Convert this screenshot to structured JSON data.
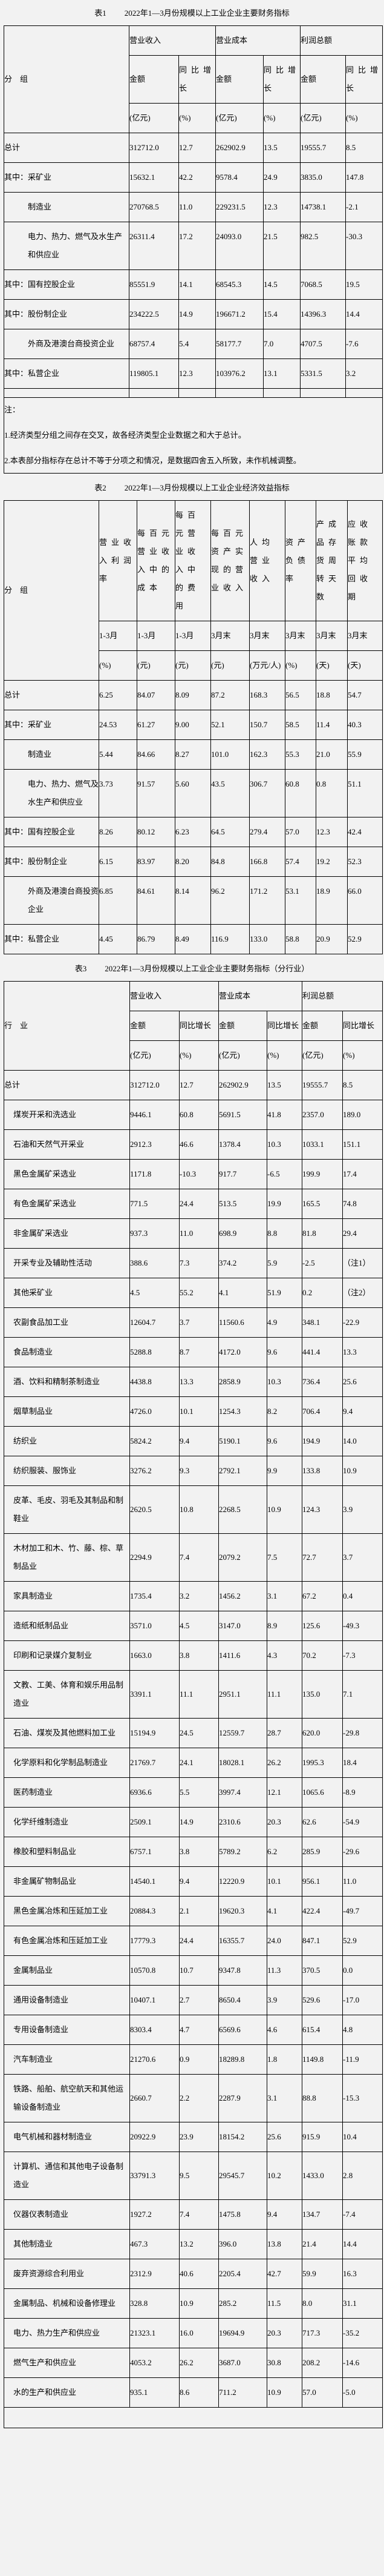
{
  "table1": {
    "number": "表1",
    "title": "2022年1—3月份规模以上工业企业主要财务指标",
    "row_header": "分　组",
    "groups": [
      "营业收入",
      "营业成本",
      "利润总额"
    ],
    "subheaders": [
      "金额",
      "同比增长"
    ],
    "units": [
      "(亿元)",
      "(%)"
    ],
    "rows": [
      {
        "label": "总计",
        "level": 0,
        "values": [
          "312712.0",
          "12.7",
          "262902.9",
          "13.5",
          "19555.7",
          "8.5"
        ]
      },
      {
        "label": "其中：采矿业",
        "level": 0,
        "values": [
          "15632.1",
          "42.2",
          "9578.4",
          "24.9",
          "3835.0",
          "147.8"
        ]
      },
      {
        "label": "制造业",
        "level": 1,
        "values": [
          "270768.5",
          "11.0",
          "229231.5",
          "12.3",
          "14738.1",
          "-2.1"
        ]
      },
      {
        "label": "电力、热力、燃气及水生产和供应业",
        "level": 1,
        "values": [
          "26311.4",
          "17.2",
          "24093.0",
          "21.5",
          "982.5",
          "-30.3"
        ]
      },
      {
        "label": "其中：国有控股企业",
        "level": 0,
        "values": [
          "85551.9",
          "14.1",
          "68545.3",
          "14.5",
          "7068.5",
          "19.5"
        ]
      },
      {
        "label": "其中：股份制企业",
        "level": 0,
        "values": [
          "234222.5",
          "14.9",
          "196671.2",
          "15.4",
          "14396.3",
          "14.4"
        ]
      },
      {
        "label": "外商及港澳台商投资企业",
        "level": 1,
        "values": [
          "68757.4",
          "5.4",
          "58177.7",
          "7.0",
          "4707.5",
          "-7.6"
        ]
      },
      {
        "label": "其中：私营企业",
        "level": 0,
        "values": [
          "119805.1",
          "12.3",
          "103976.2",
          "13.1",
          "5331.5",
          "3.2"
        ]
      }
    ],
    "notes": [
      "注：",
      "1.经济类型分组之间存在交叉，故各经济类型企业数据之和大于总计。",
      "2.本表部分指标存在总计不等于分项之和情况，是数据四舍五入所致，未作机械调整。"
    ]
  },
  "table2": {
    "number": "表2",
    "title": "2022年1—3月份规模以上工业企业经济效益指标",
    "row_header": "分　组",
    "columns": [
      {
        "name": "营业收入利润率",
        "period": "1-3月",
        "unit": "(%)"
      },
      {
        "name": "每百元营业收入中的成本",
        "period": "1-3月",
        "unit": "(元)"
      },
      {
        "name": "每百元营业收入中的费用",
        "period": "1-3月",
        "unit": "(元)"
      },
      {
        "name": "每百元资产实现的营业收入",
        "period": "3月末",
        "unit": "(元)"
      },
      {
        "name": "人均营业收入",
        "period": "3月末",
        "unit": "(万元/人)"
      },
      {
        "name": "资产负债率",
        "period": "3月末",
        "unit": "(%)"
      },
      {
        "name": "产成品存货周转天数",
        "period": "3月末",
        "unit": "(天)"
      },
      {
        "name": "应收账款平均回收期",
        "period": "3月末",
        "unit": "(天)"
      }
    ],
    "rows": [
      {
        "label": "总计",
        "level": 0,
        "values": [
          "6.25",
          "84.07",
          "8.09",
          "87.2",
          "168.3",
          "56.5",
          "18.8",
          "54.7"
        ]
      },
      {
        "label": "其中：采矿业",
        "level": 0,
        "values": [
          "24.53",
          "61.27",
          "9.00",
          "52.1",
          "150.7",
          "58.5",
          "11.4",
          "40.3"
        ]
      },
      {
        "label": "制造业",
        "level": 1,
        "values": [
          "5.44",
          "84.66",
          "8.27",
          "101.0",
          "162.3",
          "55.3",
          "21.0",
          "55.9"
        ]
      },
      {
        "label": "电力、热力、燃气及水生产和供应业",
        "level": 1,
        "values": [
          "3.73",
          "91.57",
          "5.60",
          "43.5",
          "306.7",
          "60.8",
          "0.8",
          "51.1"
        ]
      },
      {
        "label": "其中：国有控股企业",
        "level": 0,
        "values": [
          "8.26",
          "80.12",
          "6.23",
          "64.5",
          "279.4",
          "57.0",
          "12.3",
          "42.4"
        ]
      },
      {
        "label": "其中：股份制企业",
        "level": 0,
        "values": [
          "6.15",
          "83.97",
          "8.20",
          "84.8",
          "166.8",
          "57.4",
          "19.2",
          "52.3"
        ]
      },
      {
        "label": "外商及港澳台商投资企业",
        "level": 1,
        "values": [
          "6.85",
          "84.61",
          "8.14",
          "96.2",
          "171.2",
          "53.1",
          "18.9",
          "66.0"
        ]
      },
      {
        "label": "其中：私营企业",
        "level": 0,
        "values": [
          "4.45",
          "86.79",
          "8.49",
          "116.9",
          "133.0",
          "58.8",
          "20.9",
          "52.9"
        ]
      }
    ]
  },
  "table3": {
    "number": "表3",
    "title": "2022年1—3月份规模以上工业企业主要财务指标（分行业）",
    "row_header": "行　业",
    "groups": [
      "营业收入",
      "营业成本",
      "利润总额"
    ],
    "subheaders": [
      "金额",
      "同比增长"
    ],
    "units": [
      "(亿元)",
      "(%)"
    ],
    "rows": [
      {
        "label": "总计",
        "level": 0,
        "values": [
          "312712.0",
          "12.7",
          "262902.9",
          "13.5",
          "19555.7",
          "8.5"
        ]
      },
      {
        "label": "煤炭开采和洗选业",
        "level": 1,
        "values": [
          "9446.1",
          "60.8",
          "5691.5",
          "41.8",
          "2357.0",
          "189.0"
        ]
      },
      {
        "label": "石油和天然气开采业",
        "level": 1,
        "values": [
          "2912.3",
          "46.6",
          "1378.4",
          "10.3",
          "1033.1",
          "151.1"
        ]
      },
      {
        "label": "黑色金属矿采选业",
        "level": 1,
        "values": [
          "1171.8",
          "-10.3",
          "917.7",
          "-6.5",
          "199.9",
          "17.4"
        ]
      },
      {
        "label": "有色金属矿采选业",
        "level": 1,
        "values": [
          "771.5",
          "24.4",
          "513.5",
          "19.9",
          "165.5",
          "74.8"
        ]
      },
      {
        "label": "非金属矿采选业",
        "level": 1,
        "values": [
          "937.3",
          "11.0",
          "698.9",
          "8.8",
          "81.8",
          "29.4"
        ]
      },
      {
        "label": "开采专业及辅助性活动",
        "level": 1,
        "values": [
          "388.6",
          "7.3",
          "374.2",
          "5.9",
          "-2.5",
          "（注1）"
        ]
      },
      {
        "label": "其他采矿业",
        "level": 1,
        "values": [
          "4.5",
          "55.2",
          "4.1",
          "51.9",
          "0.2",
          "（注2）"
        ]
      },
      {
        "label": "农副食品加工业",
        "level": 1,
        "values": [
          "12604.7",
          "3.7",
          "11560.6",
          "4.9",
          "348.1",
          "-22.9"
        ]
      },
      {
        "label": "食品制造业",
        "level": 1,
        "values": [
          "5288.8",
          "8.7",
          "4172.0",
          "9.6",
          "441.4",
          "13.3"
        ]
      },
      {
        "label": "酒、饮料和精制茶制造业",
        "level": 1,
        "values": [
          "4438.8",
          "13.3",
          "2858.9",
          "10.3",
          "736.4",
          "25.6"
        ]
      },
      {
        "label": "烟草制品业",
        "level": 1,
        "values": [
          "4726.0",
          "10.1",
          "1254.3",
          "8.2",
          "706.4",
          "9.4"
        ]
      },
      {
        "label": "纺织业",
        "level": 1,
        "values": [
          "5824.2",
          "9.4",
          "5190.1",
          "9.6",
          "194.9",
          "14.0"
        ]
      },
      {
        "label": "纺织服装、服饰业",
        "level": 1,
        "values": [
          "3276.2",
          "9.3",
          "2792.1",
          "9.9",
          "133.8",
          "10.9"
        ]
      },
      {
        "label": "皮革、毛皮、羽毛及其制品和制鞋业",
        "level": 1,
        "values": [
          "2620.5",
          "10.8",
          "2268.5",
          "10.9",
          "124.3",
          "3.9"
        ]
      },
      {
        "label": "木材加工和木、竹、藤、棕、草制品业",
        "level": 1,
        "values": [
          "2294.9",
          "7.4",
          "2079.2",
          "7.5",
          "72.7",
          "3.7"
        ]
      },
      {
        "label": "家具制造业",
        "level": 1,
        "values": [
          "1735.4",
          "3.2",
          "1456.2",
          "3.1",
          "67.2",
          "0.4"
        ]
      },
      {
        "label": "造纸和纸制品业",
        "level": 1,
        "values": [
          "3571.0",
          "4.5",
          "3147.0",
          "8.9",
          "125.6",
          "-49.3"
        ]
      },
      {
        "label": "印刷和记录媒介复制业",
        "level": 1,
        "values": [
          "1663.0",
          "3.8",
          "1411.6",
          "4.3",
          "70.2",
          "-7.3"
        ]
      },
      {
        "label": "文教、工美、体育和娱乐用品制造业",
        "level": 1,
        "values": [
          "3391.1",
          "11.1",
          "2951.1",
          "11.1",
          "135.0",
          "7.1"
        ]
      },
      {
        "label": "石油、煤炭及其他燃料加工业",
        "level": 1,
        "values": [
          "15194.9",
          "24.5",
          "12559.7",
          "28.7",
          "620.0",
          "-29.8"
        ]
      },
      {
        "label": "化学原料和化学制品制造业",
        "level": 1,
        "values": [
          "21769.7",
          "24.1",
          "18028.1",
          "26.2",
          "1995.3",
          "18.4"
        ]
      },
      {
        "label": "医药制造业",
        "level": 1,
        "values": [
          "6936.6",
          "5.5",
          "3997.4",
          "12.1",
          "1065.6",
          "-8.9"
        ]
      },
      {
        "label": "化学纤维制造业",
        "level": 1,
        "values": [
          "2509.1",
          "14.9",
          "2310.6",
          "20.3",
          "62.6",
          "-54.9"
        ]
      },
      {
        "label": "橡胶和塑料制品业",
        "level": 1,
        "values": [
          "6757.1",
          "3.8",
          "5789.2",
          "6.2",
          "285.9",
          "-29.6"
        ]
      },
      {
        "label": "非金属矿物制品业",
        "level": 1,
        "values": [
          "14540.1",
          "9.4",
          "12220.9",
          "10.1",
          "956.1",
          "11.0"
        ]
      },
      {
        "label": "黑色金属冶炼和压延加工业",
        "level": 1,
        "values": [
          "20884.3",
          "2.1",
          "19620.3",
          "4.1",
          "422.4",
          "-49.7"
        ]
      },
      {
        "label": "有色金属冶炼和压延加工业",
        "level": 1,
        "values": [
          "17779.3",
          "24.4",
          "16355.7",
          "24.0",
          "847.1",
          "52.9"
        ]
      },
      {
        "label": "金属制品业",
        "level": 1,
        "values": [
          "10570.8",
          "10.7",
          "9347.8",
          "11.3",
          "370.5",
          "0.0"
        ]
      },
      {
        "label": "通用设备制造业",
        "level": 1,
        "values": [
          "10407.1",
          "2.7",
          "8650.4",
          "3.9",
          "529.6",
          "-17.0"
        ]
      },
      {
        "label": "专用设备制造业",
        "level": 1,
        "values": [
          "8303.4",
          "4.7",
          "6569.6",
          "4.6",
          "615.4",
          "4.8"
        ]
      },
      {
        "label": "汽车制造业",
        "level": 1,
        "values": [
          "21270.6",
          "0.9",
          "18289.8",
          "1.8",
          "1149.8",
          "-11.9"
        ]
      },
      {
        "label": "铁路、船舶、航空航天和其他运输设备制造业",
        "level": 1,
        "values": [
          "2660.7",
          "2.2",
          "2287.9",
          "3.1",
          "88.8",
          "-15.3"
        ]
      },
      {
        "label": "电气机械和器材制造业",
        "level": 1,
        "values": [
          "20922.9",
          "23.9",
          "18154.2",
          "25.6",
          "915.9",
          "10.4"
        ]
      },
      {
        "label": "计算机、通信和其他电子设备制造业",
        "level": 1,
        "values": [
          "33791.3",
          "9.5",
          "29545.7",
          "10.2",
          "1433.0",
          "2.8"
        ]
      },
      {
        "label": "仪器仪表制造业",
        "level": 1,
        "values": [
          "1927.2",
          "7.4",
          "1475.8",
          "9.4",
          "134.7",
          "-7.4"
        ]
      },
      {
        "label": "其他制造业",
        "level": 1,
        "values": [
          "467.3",
          "13.2",
          "396.0",
          "13.8",
          "21.4",
          "14.4"
        ]
      },
      {
        "label": "废弃资源综合利用业",
        "level": 1,
        "values": [
          "2312.9",
          "40.6",
          "2205.4",
          "42.7",
          "59.9",
          "16.3"
        ]
      },
      {
        "label": "金属制品、机械和设备修理业",
        "level": 1,
        "values": [
          "328.8",
          "10.9",
          "285.2",
          "11.5",
          "8.0",
          "31.1"
        ]
      },
      {
        "label": "电力、热力生产和供应业",
        "level": 1,
        "values": [
          "21323.1",
          "16.0",
          "19694.9",
          "20.3",
          "717.3",
          "-35.2"
        ]
      },
      {
        "label": "燃气生产和供应业",
        "level": 1,
        "values": [
          "4053.2",
          "26.2",
          "3687.0",
          "30.8",
          "208.2",
          "-14.6"
        ]
      },
      {
        "label": "水的生产和供应业",
        "level": 1,
        "values": [
          "935.1",
          "8.6",
          "711.2",
          "10.9",
          "57.0",
          "-5.0"
        ]
      }
    ]
  }
}
